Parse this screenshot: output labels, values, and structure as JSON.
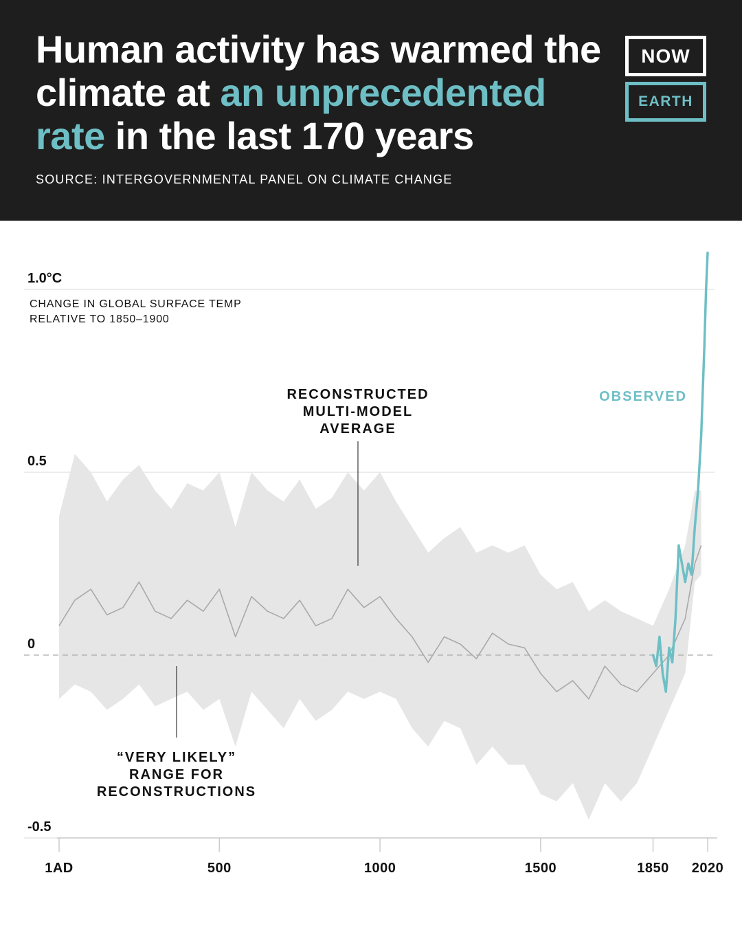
{
  "header": {
    "title_part1": "Human activity has warmed the climate at ",
    "title_highlight": "an unprecedented rate",
    "title_part2": " in the last 170 years",
    "source": "SOURCE: INTERGOVERNMENTAL PANEL ON CLIMATE CHANGE"
  },
  "logo": {
    "line1": "NOW",
    "line2": "EARTH"
  },
  "colors": {
    "header_bg": "#1e1e1e",
    "accent": "#6ebfc5",
    "band": "#e6e6e6",
    "reconstruction_line": "#a9a9a9"
  },
  "chart_data": {
    "type": "line",
    "ylabel_line1": "CHANGE IN GLOBAL SURFACE TEMP",
    "ylabel_line2": "RELATIVE TO 1850–1900",
    "y_ticks": [
      {
        "value": 1.0,
        "label": "1.0°C"
      },
      {
        "value": 0.5,
        "label": "0.5"
      },
      {
        "value": 0,
        "label": "0"
      },
      {
        "value": -0.5,
        "label": "-0.5"
      }
    ],
    "x_ticks": [
      {
        "value": 1,
        "label": "1AD"
      },
      {
        "value": 500,
        "label": "500"
      },
      {
        "value": 1000,
        "label": "1000"
      },
      {
        "value": 1500,
        "label": "1500"
      },
      {
        "value": 1850,
        "label": "1850"
      },
      {
        "value": 2020,
        "label": "2020"
      }
    ],
    "xlim": [
      1,
      2020
    ],
    "ylim": [
      -0.5,
      1.0
    ],
    "zero_line": "dashed",
    "annotations": {
      "reconstructed_line1": "RECONSTRUCTED",
      "reconstructed_line2": "MULTI-MODEL",
      "reconstructed_line3": "AVERAGE",
      "range_line1": "“VERY LIKELY”",
      "range_line2": "RANGE FOR",
      "range_line3": "RECONSTRUCTIONS",
      "observed": "OBSERVED"
    },
    "series": [
      {
        "x": [
          1,
          50,
          100,
          150,
          200,
          250,
          300,
          350,
          400,
          450,
          500,
          550,
          600,
          650,
          700,
          750,
          800,
          850,
          900,
          950,
          1000,
          1050,
          1100,
          1150,
          1200,
          1250,
          1300,
          1350,
          1400,
          1450,
          1500,
          1550,
          1600,
          1650,
          1700,
          1750,
          1800,
          1850,
          1900,
          1950,
          1980,
          2000
        ],
        "values": [
          0.08,
          0.15,
          0.18,
          0.11,
          0.13,
          0.2,
          0.12,
          0.1,
          0.15,
          0.12,
          0.18,
          0.05,
          0.16,
          0.12,
          0.1,
          0.15,
          0.08,
          0.1,
          0.18,
          0.13,
          0.16,
          0.1,
          0.05,
          -0.02,
          0.05,
          0.03,
          -0.01,
          0.06,
          0.03,
          0.02,
          -0.05,
          -0.1,
          -0.07,
          -0.12,
          -0.03,
          -0.08,
          -0.1,
          -0.05,
          0.0,
          0.1,
          0.25,
          0.3
        ]
      },
      {
        "name": "OBSERVED",
        "x": [
          1850,
          1860,
          1870,
          1880,
          1890,
          1900,
          1910,
          1920,
          1930,
          1940,
          1950,
          1960,
          1970,
          1980,
          1990,
          2000,
          2010,
          2015,
          2020
        ],
        "values": [
          0.0,
          -0.03,
          0.05,
          -0.05,
          -0.1,
          0.02,
          -0.02,
          0.1,
          0.3,
          0.25,
          0.2,
          0.25,
          0.22,
          0.35,
          0.45,
          0.6,
          0.85,
          1.0,
          1.1
        ]
      }
    ],
    "band": {
      "x": [
        1,
        50,
        100,
        150,
        200,
        250,
        300,
        350,
        400,
        450,
        500,
        550,
        600,
        650,
        700,
        750,
        800,
        850,
        900,
        950,
        1000,
        1050,
        1100,
        1150,
        1200,
        1250,
        1300,
        1350,
        1400,
        1450,
        1500,
        1550,
        1600,
        1650,
        1700,
        1750,
        1800,
        1850,
        1900,
        1950,
        1980,
        2000
      ],
      "upper": [
        0.38,
        0.55,
        0.5,
        0.42,
        0.48,
        0.52,
        0.45,
        0.4,
        0.47,
        0.45,
        0.5,
        0.35,
        0.5,
        0.45,
        0.42,
        0.48,
        0.4,
        0.43,
        0.5,
        0.45,
        0.5,
        0.42,
        0.35,
        0.28,
        0.32,
        0.35,
        0.28,
        0.3,
        0.28,
        0.3,
        0.22,
        0.18,
        0.2,
        0.12,
        0.15,
        0.12,
        0.1,
        0.08,
        0.18,
        0.3,
        0.45,
        0.45
      ],
      "lower": [
        -0.12,
        -0.08,
        -0.1,
        -0.15,
        -0.12,
        -0.08,
        -0.14,
        -0.12,
        -0.1,
        -0.15,
        -0.12,
        -0.25,
        -0.1,
        -0.15,
        -0.2,
        -0.12,
        -0.18,
        -0.15,
        -0.1,
        -0.12,
        -0.1,
        -0.12,
        -0.2,
        -0.25,
        -0.18,
        -0.2,
        -0.3,
        -0.25,
        -0.3,
        -0.3,
        -0.38,
        -0.4,
        -0.35,
        -0.45,
        -0.35,
        -0.4,
        -0.35,
        -0.25,
        -0.15,
        -0.05,
        0.2,
        0.22
      ]
    }
  }
}
